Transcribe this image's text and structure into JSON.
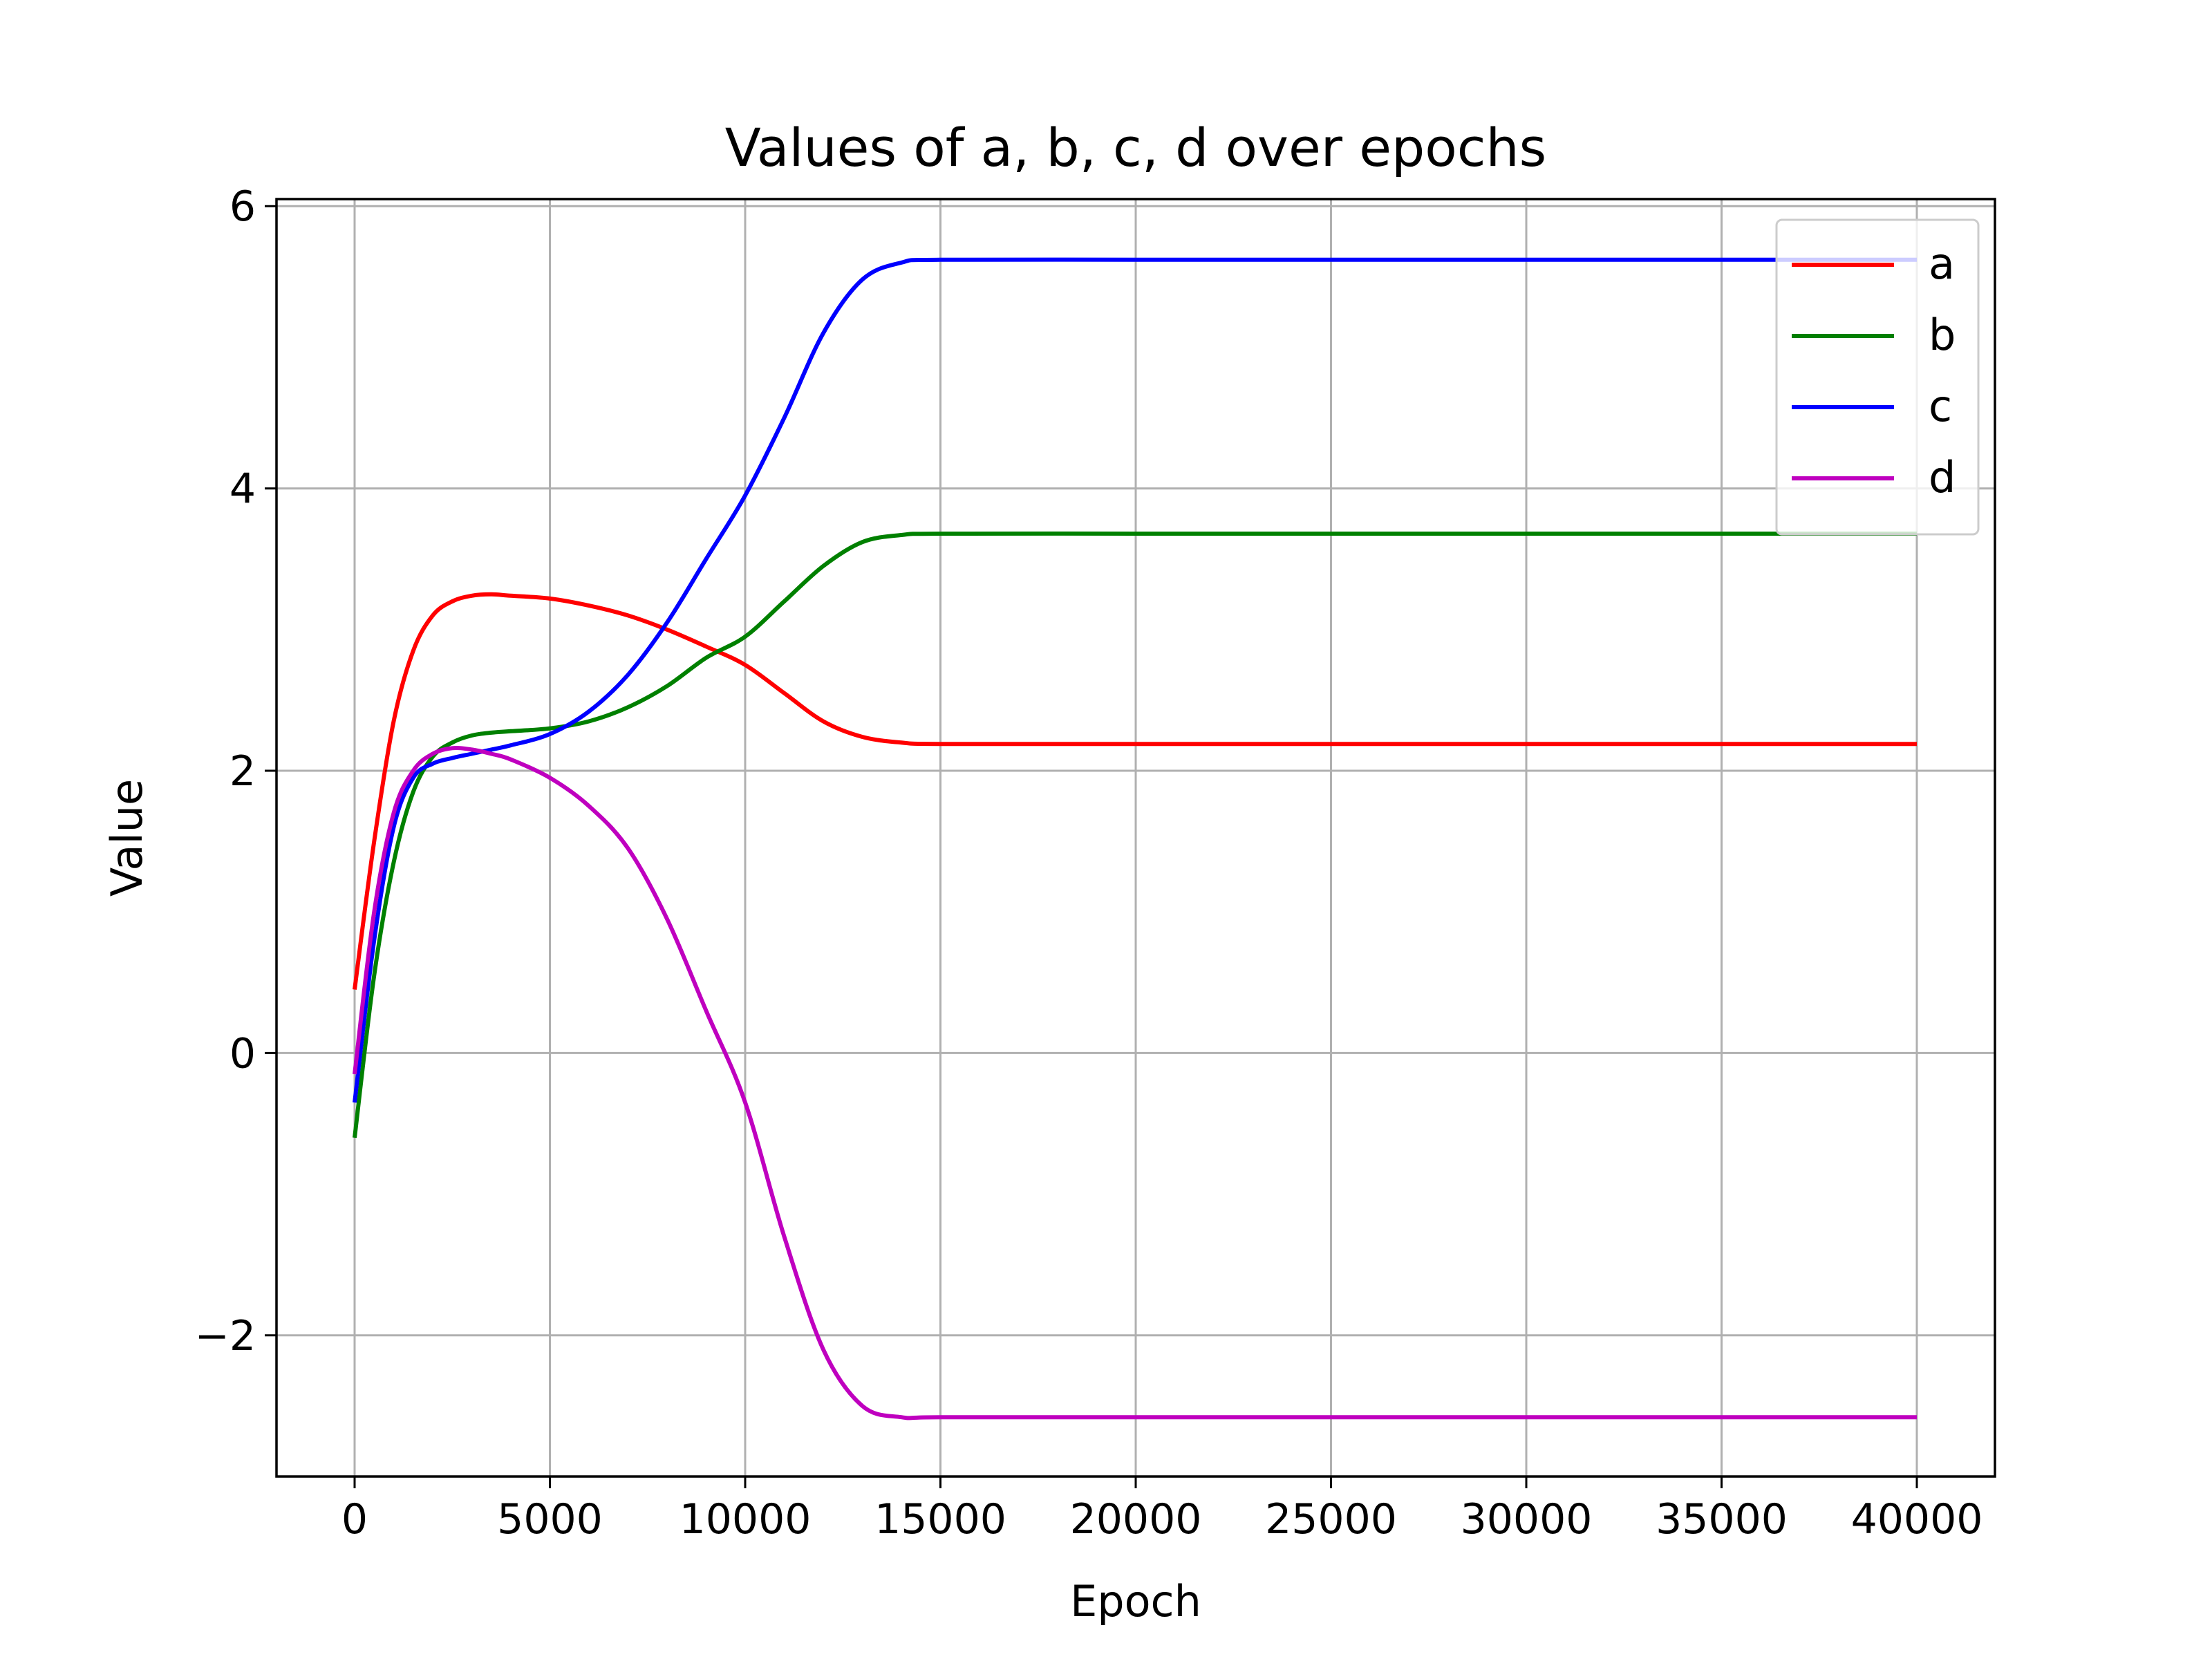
{
  "chart_data": {
    "type": "line",
    "title": "Values of a, b, c, d over epochs",
    "xlabel": "Epoch",
    "ylabel": "Value",
    "xlim": [
      -2000,
      42000
    ],
    "ylim": [
      -3.0,
      6.05
    ],
    "xticks": [
      0,
      5000,
      10000,
      15000,
      20000,
      25000,
      30000,
      35000,
      40000
    ],
    "xtick_labels": [
      "0",
      "5000",
      "10000",
      "15000",
      "20000",
      "25000",
      "30000",
      "35000",
      "40000"
    ],
    "yticks": [
      -2,
      0,
      2,
      4,
      6
    ],
    "ytick_labels": [
      "−2",
      "0",
      "2",
      "4",
      "6"
    ],
    "grid": true,
    "legend_position": "top-right",
    "x": [
      0,
      500,
      1000,
      1500,
      2000,
      2500,
      3000,
      3500,
      4000,
      5000,
      6000,
      7000,
      8000,
      9000,
      10000,
      11000,
      12000,
      13000,
      14000,
      15000,
      20000,
      25000,
      30000,
      35000,
      40000
    ],
    "series": [
      {
        "name": "a",
        "color": "#ff0000",
        "values": [
          0.45,
          1.5,
          2.35,
          2.85,
          3.1,
          3.2,
          3.24,
          3.25,
          3.24,
          3.22,
          3.17,
          3.1,
          3.0,
          2.88,
          2.75,
          2.55,
          2.35,
          2.24,
          2.2,
          2.19,
          2.19,
          2.19,
          2.19,
          2.19,
          2.19
        ]
      },
      {
        "name": "b",
        "color": "#008000",
        "values": [
          -0.6,
          0.55,
          1.35,
          1.85,
          2.1,
          2.2,
          2.25,
          2.27,
          2.28,
          2.3,
          2.35,
          2.45,
          2.6,
          2.8,
          2.95,
          3.2,
          3.45,
          3.62,
          3.67,
          3.68,
          3.68,
          3.68,
          3.68,
          3.68,
          3.68
        ]
      },
      {
        "name": "c",
        "color": "#0000ff",
        "values": [
          -0.35,
          0.8,
          1.6,
          1.95,
          2.05,
          2.09,
          2.12,
          2.15,
          2.18,
          2.26,
          2.42,
          2.68,
          3.05,
          3.5,
          3.95,
          4.5,
          5.1,
          5.48,
          5.6,
          5.62,
          5.62,
          5.62,
          5.62,
          5.62,
          5.62
        ]
      },
      {
        "name": "d",
        "color": "#bf00bf",
        "values": [
          -0.15,
          1.0,
          1.7,
          2.0,
          2.12,
          2.16,
          2.15,
          2.12,
          2.08,
          1.95,
          1.75,
          1.45,
          0.95,
          0.3,
          -0.35,
          -1.3,
          -2.1,
          -2.5,
          -2.58,
          -2.58,
          -2.58,
          -2.58,
          -2.58,
          -2.58,
          -2.58
        ]
      }
    ]
  }
}
